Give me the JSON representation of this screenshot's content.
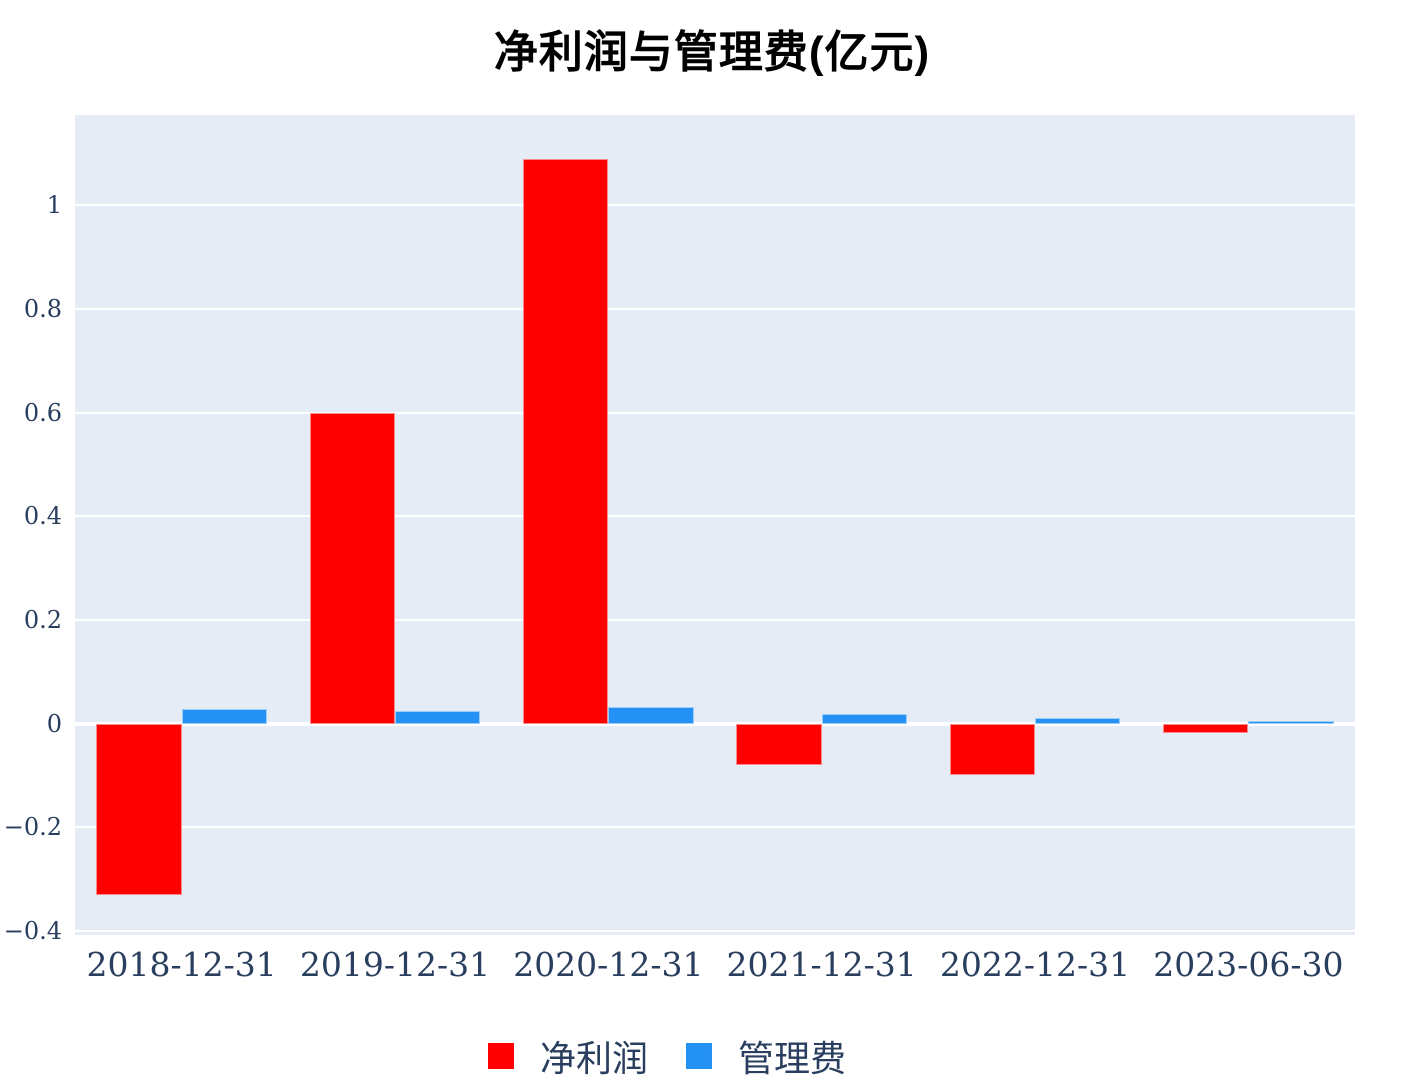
{
  "title": "净利润与管理费(亿元)",
  "colors": {
    "plot_background": "#e5ecf6",
    "gridline": "#ffffff",
    "tick_text": "#2a3f5f",
    "title_text": "#000000",
    "net_profit": "#ff0000",
    "management_fee": "#2492f5"
  },
  "chart_data": {
    "type": "bar",
    "title": "净利润与管理费(亿元)",
    "categories": [
      "2018-12-31",
      "2019-12-31",
      "2020-12-31",
      "2021-12-31",
      "2022-12-31",
      "2023-06-30"
    ],
    "series": [
      {
        "key": "net-profit",
        "name": "净利润",
        "color": "#ff0000",
        "values": [
          -0.33,
          0.6,
          1.09,
          -0.08,
          -0.1,
          -0.018
        ]
      },
      {
        "key": "management-fee",
        "name": "管理费",
        "color": "#2492f5",
        "values": [
          0.028,
          0.024,
          0.032,
          0.018,
          0.011,
          0.004
        ]
      }
    ],
    "xlabel": "",
    "ylabel": "",
    "ylim": [
      -0.408,
      1.174
    ],
    "yticks": [
      -0.4,
      -0.2,
      0,
      0.2,
      0.4,
      0.6,
      0.8,
      1
    ],
    "ytick_labels": [
      "−0.4",
      "−0.2",
      "0",
      "0.2",
      "0.4",
      "0.6",
      "0.8",
      "1"
    ],
    "grid": true,
    "legend_position": "bottom",
    "bar_mode": "grouped"
  }
}
